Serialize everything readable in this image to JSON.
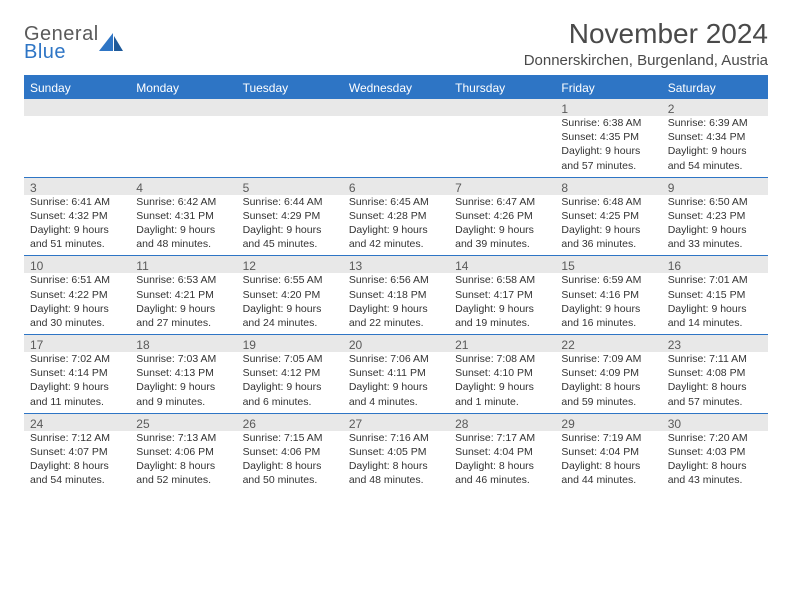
{
  "logo": {
    "general": "General",
    "blue": "Blue"
  },
  "title": "November 2024",
  "location": "Donnerskirchen, Burgenland, Austria",
  "colors": {
    "accent": "#2e75c5",
    "header_text": "#ffffff",
    "daynum_bg": "#e8e8e8",
    "text": "#333333",
    "muted": "#5a5a5a"
  },
  "days_of_week": [
    "Sunday",
    "Monday",
    "Tuesday",
    "Wednesday",
    "Thursday",
    "Friday",
    "Saturday"
  ],
  "weeks": [
    [
      null,
      null,
      null,
      null,
      null,
      {
        "n": "1",
        "sr": "Sunrise: 6:38 AM",
        "ss": "Sunset: 4:35 PM",
        "d1": "Daylight: 9 hours",
        "d2": "and 57 minutes."
      },
      {
        "n": "2",
        "sr": "Sunrise: 6:39 AM",
        "ss": "Sunset: 4:34 PM",
        "d1": "Daylight: 9 hours",
        "d2": "and 54 minutes."
      }
    ],
    [
      {
        "n": "3",
        "sr": "Sunrise: 6:41 AM",
        "ss": "Sunset: 4:32 PM",
        "d1": "Daylight: 9 hours",
        "d2": "and 51 minutes."
      },
      {
        "n": "4",
        "sr": "Sunrise: 6:42 AM",
        "ss": "Sunset: 4:31 PM",
        "d1": "Daylight: 9 hours",
        "d2": "and 48 minutes."
      },
      {
        "n": "5",
        "sr": "Sunrise: 6:44 AM",
        "ss": "Sunset: 4:29 PM",
        "d1": "Daylight: 9 hours",
        "d2": "and 45 minutes."
      },
      {
        "n": "6",
        "sr": "Sunrise: 6:45 AM",
        "ss": "Sunset: 4:28 PM",
        "d1": "Daylight: 9 hours",
        "d2": "and 42 minutes."
      },
      {
        "n": "7",
        "sr": "Sunrise: 6:47 AM",
        "ss": "Sunset: 4:26 PM",
        "d1": "Daylight: 9 hours",
        "d2": "and 39 minutes."
      },
      {
        "n": "8",
        "sr": "Sunrise: 6:48 AM",
        "ss": "Sunset: 4:25 PM",
        "d1": "Daylight: 9 hours",
        "d2": "and 36 minutes."
      },
      {
        "n": "9",
        "sr": "Sunrise: 6:50 AM",
        "ss": "Sunset: 4:23 PM",
        "d1": "Daylight: 9 hours",
        "d2": "and 33 minutes."
      }
    ],
    [
      {
        "n": "10",
        "sr": "Sunrise: 6:51 AM",
        "ss": "Sunset: 4:22 PM",
        "d1": "Daylight: 9 hours",
        "d2": "and 30 minutes."
      },
      {
        "n": "11",
        "sr": "Sunrise: 6:53 AM",
        "ss": "Sunset: 4:21 PM",
        "d1": "Daylight: 9 hours",
        "d2": "and 27 minutes."
      },
      {
        "n": "12",
        "sr": "Sunrise: 6:55 AM",
        "ss": "Sunset: 4:20 PM",
        "d1": "Daylight: 9 hours",
        "d2": "and 24 minutes."
      },
      {
        "n": "13",
        "sr": "Sunrise: 6:56 AM",
        "ss": "Sunset: 4:18 PM",
        "d1": "Daylight: 9 hours",
        "d2": "and 22 minutes."
      },
      {
        "n": "14",
        "sr": "Sunrise: 6:58 AM",
        "ss": "Sunset: 4:17 PM",
        "d1": "Daylight: 9 hours",
        "d2": "and 19 minutes."
      },
      {
        "n": "15",
        "sr": "Sunrise: 6:59 AM",
        "ss": "Sunset: 4:16 PM",
        "d1": "Daylight: 9 hours",
        "d2": "and 16 minutes."
      },
      {
        "n": "16",
        "sr": "Sunrise: 7:01 AM",
        "ss": "Sunset: 4:15 PM",
        "d1": "Daylight: 9 hours",
        "d2": "and 14 minutes."
      }
    ],
    [
      {
        "n": "17",
        "sr": "Sunrise: 7:02 AM",
        "ss": "Sunset: 4:14 PM",
        "d1": "Daylight: 9 hours",
        "d2": "and 11 minutes."
      },
      {
        "n": "18",
        "sr": "Sunrise: 7:03 AM",
        "ss": "Sunset: 4:13 PM",
        "d1": "Daylight: 9 hours",
        "d2": "and 9 minutes."
      },
      {
        "n": "19",
        "sr": "Sunrise: 7:05 AM",
        "ss": "Sunset: 4:12 PM",
        "d1": "Daylight: 9 hours",
        "d2": "and 6 minutes."
      },
      {
        "n": "20",
        "sr": "Sunrise: 7:06 AM",
        "ss": "Sunset: 4:11 PM",
        "d1": "Daylight: 9 hours",
        "d2": "and 4 minutes."
      },
      {
        "n": "21",
        "sr": "Sunrise: 7:08 AM",
        "ss": "Sunset: 4:10 PM",
        "d1": "Daylight: 9 hours",
        "d2": "and 1 minute."
      },
      {
        "n": "22",
        "sr": "Sunrise: 7:09 AM",
        "ss": "Sunset: 4:09 PM",
        "d1": "Daylight: 8 hours",
        "d2": "and 59 minutes."
      },
      {
        "n": "23",
        "sr": "Sunrise: 7:11 AM",
        "ss": "Sunset: 4:08 PM",
        "d1": "Daylight: 8 hours",
        "d2": "and 57 minutes."
      }
    ],
    [
      {
        "n": "24",
        "sr": "Sunrise: 7:12 AM",
        "ss": "Sunset: 4:07 PM",
        "d1": "Daylight: 8 hours",
        "d2": "and 54 minutes."
      },
      {
        "n": "25",
        "sr": "Sunrise: 7:13 AM",
        "ss": "Sunset: 4:06 PM",
        "d1": "Daylight: 8 hours",
        "d2": "and 52 minutes."
      },
      {
        "n": "26",
        "sr": "Sunrise: 7:15 AM",
        "ss": "Sunset: 4:06 PM",
        "d1": "Daylight: 8 hours",
        "d2": "and 50 minutes."
      },
      {
        "n": "27",
        "sr": "Sunrise: 7:16 AM",
        "ss": "Sunset: 4:05 PM",
        "d1": "Daylight: 8 hours",
        "d2": "and 48 minutes."
      },
      {
        "n": "28",
        "sr": "Sunrise: 7:17 AM",
        "ss": "Sunset: 4:04 PM",
        "d1": "Daylight: 8 hours",
        "d2": "and 46 minutes."
      },
      {
        "n": "29",
        "sr": "Sunrise: 7:19 AM",
        "ss": "Sunset: 4:04 PM",
        "d1": "Daylight: 8 hours",
        "d2": "and 44 minutes."
      },
      {
        "n": "30",
        "sr": "Sunrise: 7:20 AM",
        "ss": "Sunset: 4:03 PM",
        "d1": "Daylight: 8 hours",
        "d2": "and 43 minutes."
      }
    ]
  ]
}
